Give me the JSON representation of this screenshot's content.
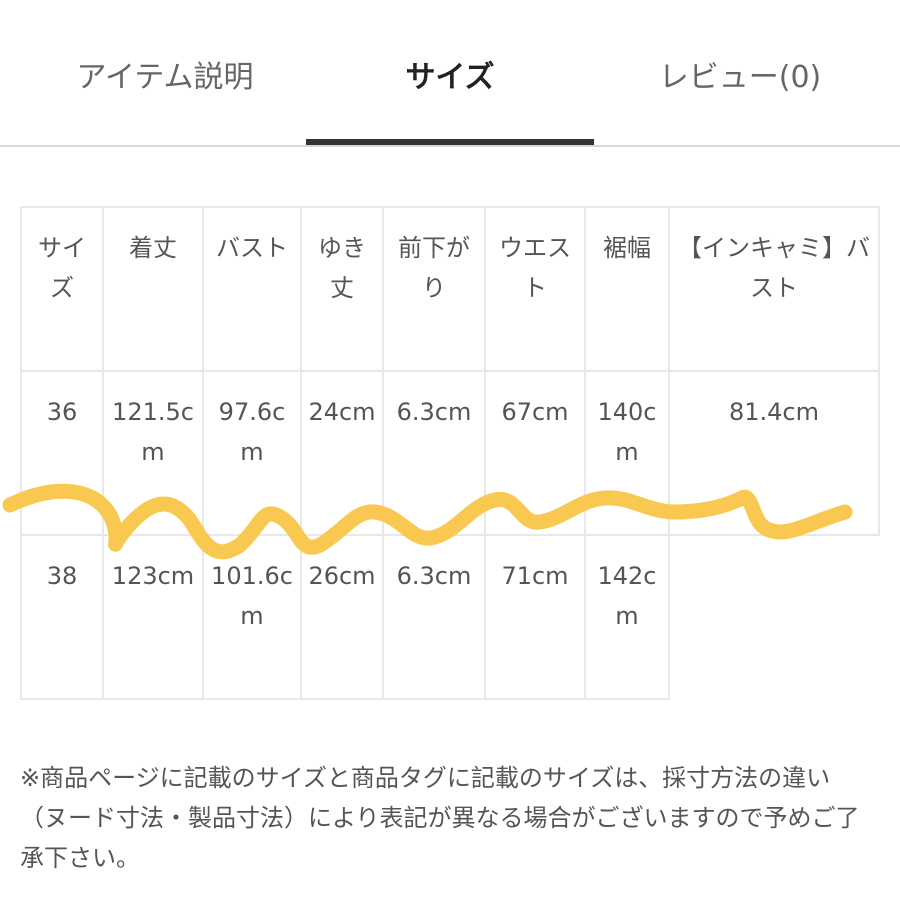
{
  "tabs": [
    {
      "label": "アイテム説明",
      "active": false
    },
    {
      "label": "サイズ",
      "active": true
    },
    {
      "label": "レビュー(0)",
      "active": false
    }
  ],
  "table": {
    "headers": [
      "サイズ",
      "着丈",
      "バスト",
      "ゆき丈",
      "前下がり",
      "ウエスト",
      "裾幅",
      "【インキャミ】バスト"
    ],
    "rows": [
      [
        "36",
        "121.5cm",
        "97.6cm",
        "24cm",
        "6.3cm",
        "67cm",
        "140cm",
        "81.4cm"
      ],
      [
        "38",
        "123cm",
        "101.6cm",
        "26cm",
        "6.3cm",
        "71cm",
        "142cm",
        ""
      ]
    ]
  },
  "note": "※商品ページに記載のサイズと商品タグに記載のサイズは、採寸方法の違い（ヌード寸法・製品寸法）により表記が異なる場合がございますので予めご了承下さい。",
  "annotation": {
    "color": "#F8C850"
  }
}
